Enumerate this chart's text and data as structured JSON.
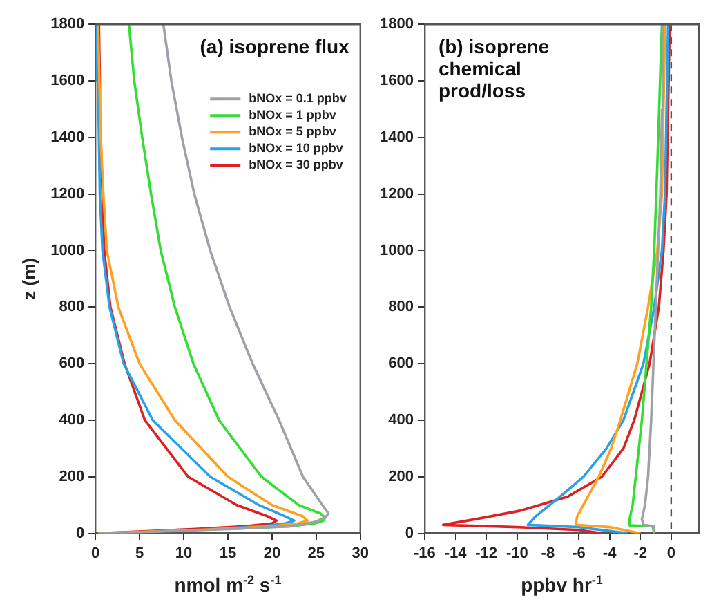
{
  "chart_data": [
    {
      "type": "line",
      "title": "(a) isoprene flux",
      "xlabel": "nmol m$^{-2}$ s$^{-1}$",
      "ylabel": "z (m)",
      "xlim": [
        0,
        30
      ],
      "xticks": [
        0,
        5,
        10,
        15,
        20,
        25,
        30
      ],
      "ylim": [
        0,
        1800
      ],
      "yticks": [
        0,
        200,
        400,
        600,
        800,
        1000,
        1200,
        1400,
        1600,
        1800
      ],
      "legend": "top right",
      "series": [
        {
          "name": "bNOx = 0.1 ppbv",
          "color": "#a0a0a8",
          "x": [
            0.5,
            6,
            15,
            22,
            24.8,
            26,
            26.4,
            25.7,
            23.5,
            20.8,
            17.8,
            15.2,
            13,
            11.2,
            9.8,
            8.6,
            7.7
          ],
          "values": [
            0,
            5,
            15,
            25,
            40,
            55,
            70,
            100,
            200,
            400,
            600,
            800,
            1000,
            1200,
            1400,
            1600,
            1800
          ]
        },
        {
          "name": "bNOx = 1 ppbv",
          "color": "#33dd33",
          "x": [
            15,
            22,
            24.8,
            25.8,
            26,
            25.5,
            23,
            18.8,
            14,
            11.1,
            9,
            7.4,
            6.3,
            5.3,
            4.4,
            3.8
          ],
          "values": [
            15,
            25,
            35,
            45,
            55,
            70,
            100,
            200,
            400,
            600,
            800,
            1000,
            1200,
            1400,
            1600,
            1800
          ]
        },
        {
          "name": "bNOx = 5 ppbv",
          "color": "#ffa020",
          "x": [
            0.3,
            5,
            14,
            20,
            23,
            24,
            23.5,
            20,
            15,
            9,
            5,
            2.6,
            1.3,
            0.9,
            0.6,
            0.45,
            0.3
          ],
          "values": [
            0,
            5,
            15,
            25,
            35,
            45,
            60,
            100,
            200,
            400,
            600,
            800,
            1000,
            1200,
            1400,
            1600,
            1800
          ]
        },
        {
          "name": "bNOx = 10 ppbv",
          "color": "#2aa0e6",
          "x": [
            13,
            19,
            21.5,
            22.5,
            21.5,
            18.5,
            13,
            6.5,
            3.2,
            1.6,
            0.8,
            0.5,
            0.4,
            0.3,
            0.2
          ],
          "values": [
            15,
            25,
            35,
            45,
            60,
            100,
            200,
            400,
            600,
            800,
            1000,
            1200,
            1400,
            1600,
            1800
          ]
        },
        {
          "name": "bNOx = 30 ppbv",
          "color": "#e02020",
          "x": [
            0.3,
            4,
            11,
            17,
            20,
            20.5,
            19.5,
            16,
            10.5,
            5.6,
            3.3,
            1.7,
            1,
            0.8,
            0.6,
            0.5,
            0.4
          ],
          "values": [
            0,
            5,
            15,
            25,
            35,
            45,
            60,
            100,
            200,
            400,
            600,
            800,
            1000,
            1200,
            1400,
            1600,
            1800
          ]
        }
      ]
    },
    {
      "type": "line",
      "title": "(b) isoprene chemical prod/loss",
      "xlabel": "ppbv hr$^{-1}$",
      "xlim": [
        -16,
        1.8
      ],
      "xticks": [
        -16,
        -14,
        -12,
        -10,
        -8,
        -6,
        -4,
        -2,
        0
      ],
      "ylim": [
        0,
        1800
      ],
      "yticks": [
        0,
        200,
        400,
        600,
        800,
        1000,
        1200,
        1400,
        1600,
        1800
      ],
      "ref_lines": [
        {
          "axis": "x",
          "value": 0,
          "color": "#555555",
          "line_style": "dashed"
        }
      ],
      "series": [
        {
          "color": "#a0a0a8",
          "x": [
            -1.1,
            -1.1,
            -1.8,
            -1.9,
            -1.7,
            -1.5,
            -1.3,
            -1,
            -0.85,
            -0.7,
            -0.6,
            -0.55
          ],
          "values": [
            0,
            25,
            30,
            50,
            100,
            200,
            400,
            800,
            1000,
            1200,
            1500,
            1800
          ]
        },
        {
          "color": "#33dd33",
          "x": [
            -1.1,
            -1.2,
            -2.7,
            -2.7,
            -2.5,
            -2.3,
            -1.9,
            -1.6,
            -1.3,
            -1.1,
            -0.9,
            -0.6
          ],
          "values": [
            0,
            25,
            28,
            50,
            100,
            200,
            400,
            600,
            800,
            1000,
            1300,
            1800
          ]
        },
        {
          "color": "#ffa020",
          "x": [
            -2,
            -4,
            -6.2,
            -6.1,
            -5.7,
            -4.7,
            -3.9,
            -3.3,
            -2.2,
            -1.5,
            -0.9,
            -0.6,
            -0.4
          ],
          "values": [
            0,
            22,
            30,
            60,
            100,
            200,
            300,
            400,
            600,
            800,
            1000,
            1200,
            1800
          ]
        },
        {
          "color": "#2aa0e6",
          "x": [
            -2.8,
            -6,
            -9.3,
            -8.8,
            -7.2,
            -5.7,
            -4.2,
            -3.1,
            -1.8,
            -1.1,
            -0.6,
            -0.4,
            -0.2
          ],
          "values": [
            0,
            22,
            30,
            60,
            130,
            200,
            300,
            400,
            600,
            800,
            1000,
            1200,
            1800
          ]
        },
        {
          "color": "#e02020",
          "x": [
            -4.5,
            -6,
            -10,
            -14.8,
            -12.7,
            -9.8,
            -6.7,
            -4.5,
            -3.1,
            -2.4,
            -1.4,
            -0.8,
            -0.5,
            -0.3,
            -0.1
          ],
          "values": [
            0,
            12,
            22,
            30,
            50,
            80,
            130,
            200,
            300,
            400,
            600,
            800,
            1000,
            1200,
            1800
          ]
        }
      ]
    }
  ]
}
